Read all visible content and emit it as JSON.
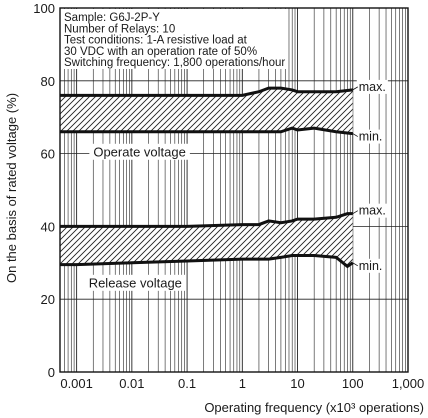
{
  "chart_data": {
    "type": "area",
    "xlabel": "Operating frequency (x10³ operations)",
    "ylabel": "On the basis of rated voltage (%)",
    "xscale": "log",
    "xlim": [
      0.0005,
      1000
    ],
    "ylim": [
      0,
      100
    ],
    "y_ticks": [
      0,
      20,
      40,
      60,
      80,
      100
    ],
    "x_ticks": [
      0.001,
      0.01,
      0.1,
      1,
      10,
      100,
      1000
    ],
    "x_tick_labels": [
      "0.001",
      "0.01",
      "0.1",
      "1",
      "10",
      "100",
      "1,000"
    ],
    "grid": true,
    "notes": [
      "Sample: G6J-2P-Y",
      "Number of Relays: 10",
      "Test conditions: 1-A resistive load at",
      "30 VDC with an operation rate of 50%",
      "Switching frequency: 1,800 operations/hour"
    ],
    "bands": [
      {
        "name": "Operate voltage",
        "max_label": "max.",
        "min_label": "min.",
        "x": [
          0.0005,
          0.001,
          0.01,
          0.1,
          1,
          2,
          3,
          5,
          8,
          10,
          20,
          50,
          100
        ],
        "max": [
          76,
          76,
          76,
          76,
          76,
          77,
          78,
          78,
          77.5,
          77,
          77,
          77,
          77.5
        ],
        "min": [
          66,
          66,
          66,
          66,
          66,
          66,
          66,
          66,
          67,
          66.5,
          67,
          66,
          65.5
        ]
      },
      {
        "name": "Release voltage",
        "max_label": "max.",
        "min_label": "min.",
        "x": [
          0.0005,
          0.001,
          0.01,
          0.1,
          1,
          2,
          3,
          5,
          8,
          10,
          20,
          50,
          80,
          100
        ],
        "max": [
          40,
          40,
          40,
          40,
          40.5,
          40.5,
          41.5,
          41,
          41.5,
          42,
          42,
          42.5,
          43.5,
          43.5
        ],
        "min": [
          29.5,
          29.5,
          30,
          30.5,
          31,
          31,
          31,
          31.5,
          32,
          32,
          32,
          31.5,
          29,
          30
        ]
      }
    ]
  }
}
